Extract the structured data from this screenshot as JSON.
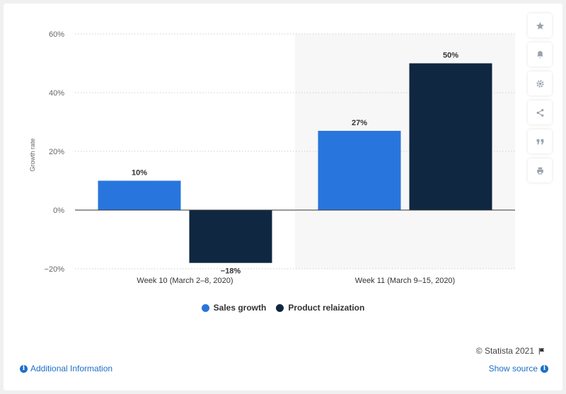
{
  "chart_data": {
    "type": "bar",
    "categories": [
      "Week 10 (March 2–8, 2020)",
      "Week 11 (March 9–15, 2020)"
    ],
    "series": [
      {
        "name": "Sales growth",
        "values": [
          10,
          27
        ],
        "labels": [
          "10%",
          "27%"
        ],
        "color": "#2876dd"
      },
      {
        "name": "Product relaization",
        "values": [
          -18,
          50
        ],
        "labels": [
          "−18%",
          "50%"
        ],
        "color": "#0f2741"
      }
    ],
    "ylabel": "Growth rate",
    "ylim": [
      -20,
      60
    ],
    "yticks": [
      60,
      40,
      20,
      0,
      -20
    ],
    "ytick_labels": [
      "60%",
      "40%",
      "20%",
      "0%",
      "−20%"
    ],
    "grid": true,
    "highlighted_category": 1,
    "legend_position": "bottom"
  },
  "legend": {
    "items": [
      {
        "label": "Sales growth",
        "color": "#2876dd"
      },
      {
        "label": "Product relaization",
        "color": "#0f2741"
      }
    ]
  },
  "toolbar": {
    "buttons": [
      "star-icon",
      "bell-icon",
      "gear-icon",
      "share-icon",
      "quote-icon",
      "print-icon"
    ]
  },
  "footer": {
    "credit": "© Statista 2021",
    "additional_info": "Additional Information",
    "show_source": "Show source"
  }
}
